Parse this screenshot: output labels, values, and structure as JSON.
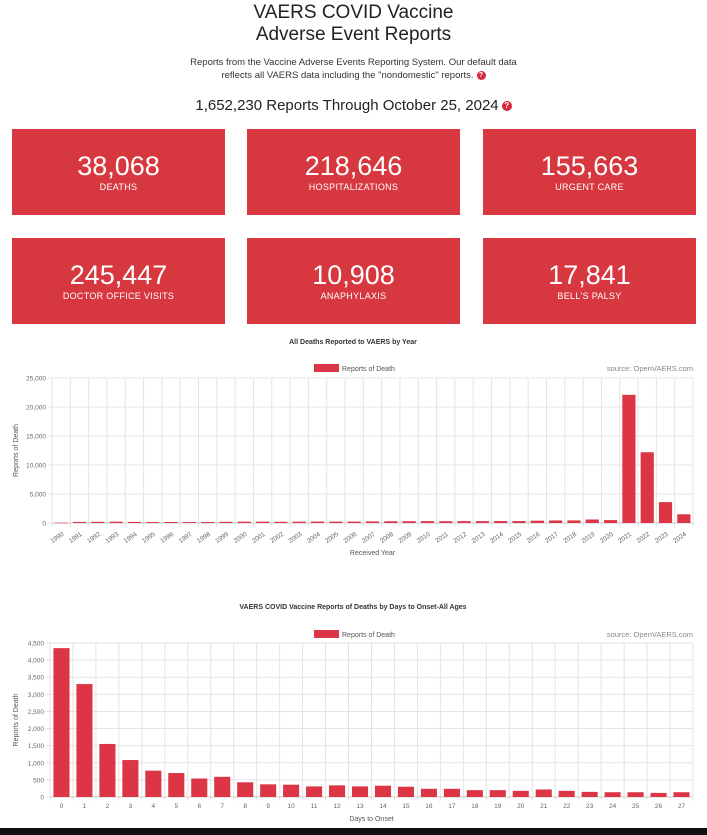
{
  "header": {
    "title_line1": "VAERS COVID Vaccine",
    "title_line2": "Adverse Event Reports",
    "subtitle_line1": "Reports from the Vaccine Adverse Events Reporting System. Our default data",
    "subtitle_line2": "reflects all VAERS data including the \"nondomestic\" reports.",
    "reports_total": "1,652,230 Reports Through October 25, 2024",
    "help_icon": "?"
  },
  "stats": [
    {
      "value": "38,068",
      "label": "DEATHS"
    },
    {
      "value": "218,646",
      "label": "HOSPITALIZATIONS"
    },
    {
      "value": "155,663",
      "label": "URGENT CARE"
    },
    {
      "value": "245,447",
      "label": "DOCTOR OFFICE VISITS"
    },
    {
      "value": "10,908",
      "label": "ANAPHYLAXIS"
    },
    {
      "value": "17,841",
      "label": "BELL'S PALSY"
    }
  ],
  "colors": {
    "accent": "#d7383f",
    "bar": "#dc3545"
  },
  "chart_data": [
    {
      "type": "bar",
      "title": "All Deaths Reported to VAERS by Year",
      "legend": "Reports of Death",
      "source": "source: OpenVAERS.com",
      "xlabel": "Received Year",
      "ylabel": "Reports of Death",
      "ylim": [
        0,
        25000
      ],
      "yticks": [
        0,
        5000,
        10000,
        15000,
        20000,
        25000
      ],
      "ytick_labels": [
        "0",
        "5,000",
        "10,000",
        "15,000",
        "20,000",
        "25,000"
      ],
      "categories": [
        "1990",
        "1991",
        "1992",
        "1993",
        "1994",
        "1995",
        "1996",
        "1997",
        "1998",
        "1999",
        "2000",
        "2001",
        "2002",
        "2003",
        "2004",
        "2005",
        "2006",
        "2007",
        "2008",
        "2009",
        "2010",
        "2011",
        "2012",
        "2013",
        "2014",
        "2015",
        "2016",
        "2017",
        "2018",
        "2019",
        "2020",
        "2021",
        "2022",
        "2023",
        "2024"
      ],
      "values": [
        50,
        180,
        200,
        220,
        190,
        160,
        170,
        160,
        170,
        200,
        230,
        230,
        210,
        230,
        250,
        240,
        240,
        270,
        300,
        310,
        320,
        310,
        320,
        320,
        330,
        330,
        400,
        440,
        450,
        600,
        500,
        22100,
        12200,
        3600,
        1500
      ]
    },
    {
      "type": "bar",
      "title": "VAERS COVID Vaccine Reports of Deaths by Days to Onset-All Ages",
      "legend": "Reports of Death",
      "source": "source: OpenVAERS.com",
      "xlabel": "Days to Onset",
      "ylabel": "Reports of Death",
      "ylim": [
        0,
        4500
      ],
      "yticks": [
        0,
        500,
        1000,
        1500,
        2000,
        2500,
        3000,
        3500,
        4000,
        4500
      ],
      "ytick_labels": [
        "0",
        "500",
        "1,000",
        "1,500",
        "2,000",
        "2,500",
        "3,000",
        "3,500",
        "4,000",
        "4,500"
      ],
      "categories": [
        "0",
        "1",
        "2",
        "3",
        "4",
        "5",
        "6",
        "7",
        "8",
        "9",
        "10",
        "11",
        "12",
        "13",
        "14",
        "15",
        "16",
        "17",
        "18",
        "19",
        "20",
        "21",
        "22",
        "23",
        "24",
        "25",
        "26",
        "27"
      ],
      "values": [
        4350,
        3300,
        1550,
        1080,
        770,
        700,
        540,
        590,
        430,
        370,
        360,
        310,
        340,
        310,
        330,
        300,
        240,
        240,
        200,
        200,
        180,
        220,
        180,
        150,
        140,
        140,
        120,
        140
      ]
    }
  ]
}
